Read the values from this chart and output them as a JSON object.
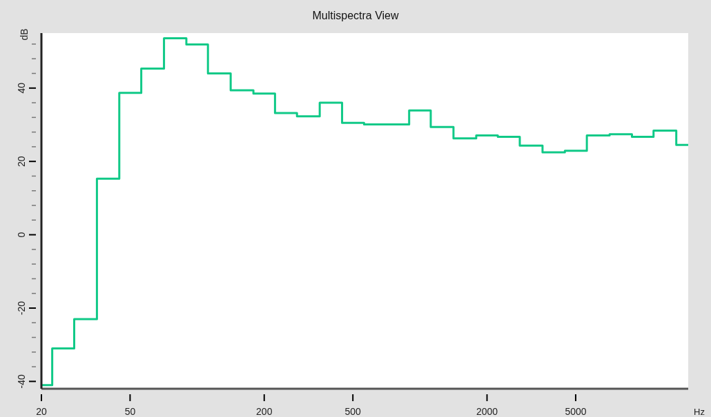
{
  "chart_data": {
    "type": "step",
    "title": "Multispectra View",
    "xlabel": "Hz",
    "ylabel": "dB",
    "x": [
      20,
      25,
      31.5,
      40,
      50,
      63,
      80,
      100,
      125,
      160,
      200,
      250,
      315,
      400,
      500,
      630,
      800,
      1000,
      1250,
      1600,
      2000,
      2500,
      3150,
      4000,
      5000,
      6300,
      8000,
      10000,
      12500,
      16000
    ],
    "series": [
      {
        "color": "#10c987",
        "values": [
          -41,
          -31,
          -23,
          15.3,
          38.7,
          45.3,
          53.6,
          51.9,
          44,
          39.4,
          38.5,
          33.2,
          32.3,
          36,
          30.5,
          30.1,
          30.1,
          33.9,
          29.4,
          26.3,
          27.1,
          26.7,
          24.3,
          22.5,
          22.9,
          27.1,
          27.4,
          26.7,
          28.4,
          24.5
        ]
      }
    ],
    "log": "x",
    "xlim": [
      20,
      16000
    ],
    "xticks": [
      20,
      50,
      200,
      500,
      2000,
      5000
    ],
    "ylim": [
      -42,
      55
    ],
    "yticks": [
      -40,
      {
        "value": -36,
        "label": null
      },
      {
        "value": -32,
        "label": null
      },
      {
        "value": -28,
        "label": null
      },
      {
        "value": -24,
        "label": null
      },
      -20,
      {
        "value": -16,
        "label": null
      },
      {
        "value": -12,
        "label": null
      },
      {
        "value": -8,
        "label": null
      },
      {
        "value": -4,
        "label": null
      },
      0,
      {
        "value": 4,
        "label": null
      },
      {
        "value": 8,
        "label": null
      },
      {
        "value": 12,
        "label": null
      },
      {
        "value": 16,
        "label": null
      },
      20,
      {
        "value": 24,
        "label": null
      },
      {
        "value": 28,
        "label": null
      },
      {
        "value": 32,
        "label": null
      },
      {
        "value": 36,
        "label": null
      },
      40,
      {
        "value": 44,
        "label": null
      },
      {
        "value": 48,
        "label": null
      },
      {
        "value": 52,
        "label": null
      }
    ],
    "grid": false,
    "marker": "none",
    "line_style": "solid"
  }
}
